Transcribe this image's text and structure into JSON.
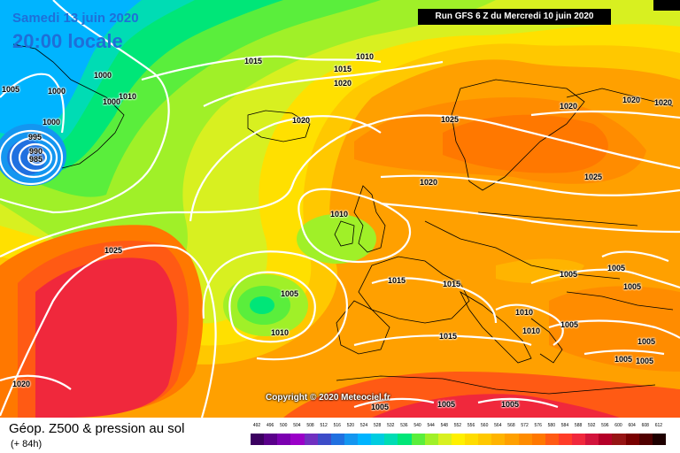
{
  "header": {
    "date_text": "Samedi 13 juin 2020",
    "local_time": "20:00 locale",
    "run_text": "Run GFS 6 Z du Mercredi 10 juin 2020",
    "copyright": "Copyright © 2020 Meteociel.fr"
  },
  "footer": {
    "title": "Géop. Z500 & pression au sol",
    "subtitle": "(+ 84h)"
  },
  "isobars": [
    {
      "value": "1005"
    },
    {
      "value": "1000"
    },
    {
      "value": "1000"
    },
    {
      "value": "1000"
    },
    {
      "value": "1010"
    },
    {
      "value": "1000"
    },
    {
      "value": "995"
    },
    {
      "value": "990"
    },
    {
      "value": "985"
    },
    {
      "value": "1015"
    },
    {
      "value": "1010"
    },
    {
      "value": "1015"
    },
    {
      "value": "1020"
    },
    {
      "value": "1020"
    },
    {
      "value": "1025"
    },
    {
      "value": "1020"
    },
    {
      "value": "1020"
    },
    {
      "value": "1020"
    },
    {
      "value": "1020"
    },
    {
      "value": "1025"
    },
    {
      "value": "1010"
    },
    {
      "value": "1025"
    },
    {
      "value": "1005"
    },
    {
      "value": "1010"
    },
    {
      "value": "1015"
    },
    {
      "value": "1015"
    },
    {
      "value": "1010"
    },
    {
      "value": "1010"
    },
    {
      "value": "1015"
    },
    {
      "value": "1005"
    },
    {
      "value": "1005"
    },
    {
      "value": "1005"
    },
    {
      "value": "1005"
    },
    {
      "value": "1005"
    },
    {
      "value": "1005"
    },
    {
      "value": "1005"
    },
    {
      "value": "1020"
    },
    {
      "value": "1005"
    },
    {
      "value": "1005"
    },
    {
      "value": "1005"
    }
  ],
  "scale_values": [
    "492",
    "496",
    "500",
    "504",
    "508",
    "512",
    "516",
    "520",
    "524",
    "528",
    "532",
    "536",
    "540",
    "544",
    "548",
    "552",
    "556",
    "560",
    "564",
    "568",
    "572",
    "576",
    "580",
    "584",
    "588",
    "592",
    "596",
    "600",
    "604",
    "608",
    "612"
  ],
  "scale_colors": [
    "#3b0060",
    "#5a008a",
    "#7b00b0",
    "#9a00c8",
    "#7030c0",
    "#3c4cc8",
    "#2070e0",
    "#1496f0",
    "#00b4ff",
    "#00cce0",
    "#00dcb4",
    "#00e678",
    "#5aee3c",
    "#a0f028",
    "#d8f020",
    "#fff000",
    "#ffdc00",
    "#ffc800",
    "#ffb400",
    "#ffa000",
    "#ff8c00",
    "#ff7800",
    "#ff5a14",
    "#ff3c28",
    "#f0283c",
    "#d2143c",
    "#b40028",
    "#961414",
    "#780000",
    "#500000",
    "#1e0000"
  ]
}
